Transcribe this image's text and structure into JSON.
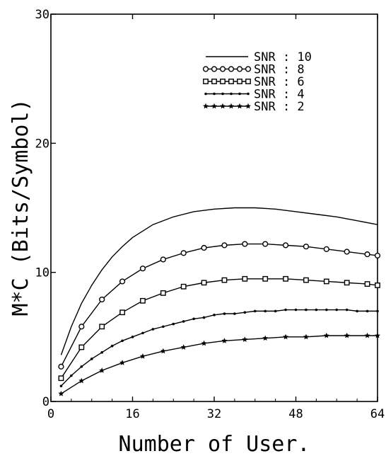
{
  "chart_data": {
    "type": "line",
    "title": "",
    "xlabel": "Number of User.",
    "ylabel": "M*C (Bits/Symbol)",
    "xlim": [
      0,
      64
    ],
    "ylim": [
      0,
      30
    ],
    "xticks": [
      0,
      16,
      32,
      48,
      64
    ],
    "yticks": [
      0,
      10,
      20,
      30
    ],
    "grid": false,
    "legend": "upper-right",
    "series": [
      {
        "name": "SNR : 10",
        "marker": "none",
        "x": [
          2,
          4,
          6,
          8,
          10,
          12,
          14,
          16,
          20,
          24,
          28,
          32,
          36,
          40,
          44,
          48,
          52,
          56,
          60,
          64
        ],
        "y": [
          3.6,
          5.8,
          7.6,
          9.0,
          10.2,
          11.2,
          12.0,
          12.7,
          13.7,
          14.3,
          14.7,
          14.9,
          15.0,
          15.0,
          14.9,
          14.7,
          14.5,
          14.3,
          14.0,
          13.7
        ]
      },
      {
        "name": "SNR : 8",
        "marker": "open-circle",
        "x": [
          2,
          6,
          10,
          14,
          18,
          22,
          26,
          30,
          34,
          38,
          42,
          46,
          50,
          54,
          58,
          62,
          64
        ],
        "y": [
          2.7,
          5.8,
          7.9,
          9.3,
          10.3,
          11.0,
          11.5,
          11.9,
          12.1,
          12.2,
          12.2,
          12.1,
          12.0,
          11.8,
          11.6,
          11.4,
          11.3
        ]
      },
      {
        "name": "SNR : 6",
        "marker": "open-square",
        "x": [
          2,
          6,
          10,
          14,
          18,
          22,
          26,
          30,
          34,
          38,
          42,
          46,
          50,
          54,
          58,
          62,
          64
        ],
        "y": [
          1.8,
          4.2,
          5.8,
          6.9,
          7.8,
          8.4,
          8.9,
          9.2,
          9.4,
          9.5,
          9.5,
          9.5,
          9.4,
          9.3,
          9.2,
          9.1,
          9.0
        ]
      },
      {
        "name": "SNR : 4",
        "marker": "dot",
        "x": [
          2,
          4,
          6,
          8,
          10,
          12,
          14,
          16,
          18,
          20,
          22,
          24,
          26,
          28,
          30,
          32,
          34,
          36,
          38,
          40,
          42,
          44,
          46,
          48,
          50,
          52,
          54,
          56,
          58,
          60,
          62,
          64
        ],
        "y": [
          1.2,
          2.0,
          2.7,
          3.3,
          3.8,
          4.3,
          4.7,
          5.0,
          5.3,
          5.6,
          5.8,
          6.0,
          6.2,
          6.4,
          6.5,
          6.7,
          6.8,
          6.8,
          6.9,
          7.0,
          7.0,
          7.0,
          7.1,
          7.1,
          7.1,
          7.1,
          7.1,
          7.1,
          7.1,
          7.0,
          7.0,
          7.0
        ]
      },
      {
        "name": "SNR : 2",
        "marker": "star",
        "x": [
          2,
          6,
          10,
          14,
          18,
          22,
          26,
          30,
          34,
          38,
          42,
          46,
          50,
          54,
          58,
          62,
          64
        ],
        "y": [
          0.6,
          1.6,
          2.4,
          3.0,
          3.5,
          3.9,
          4.2,
          4.5,
          4.7,
          4.8,
          4.9,
          5.0,
          5.0,
          5.1,
          5.1,
          5.1,
          5.1
        ]
      }
    ]
  }
}
